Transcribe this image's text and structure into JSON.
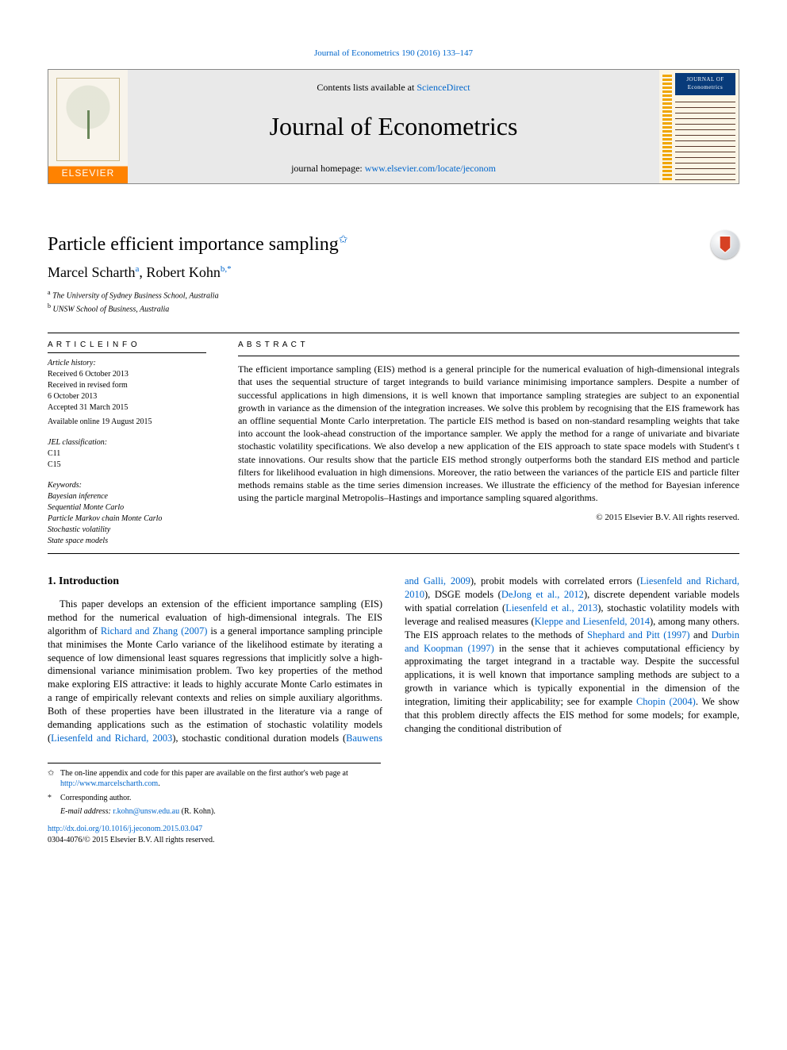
{
  "citation": "Journal of Econometrics 190 (2016) 133–147",
  "header": {
    "contents_prefix": "Contents lists available at ",
    "contents_link": "ScienceDirect",
    "journal_name": "Journal of Econometrics",
    "homepage_prefix": "journal homepage: ",
    "homepage_link": "www.elsevier.com/locate/jeconom",
    "elsevier_label": "ELSEVIER",
    "cover_badge_line1": "JOURNAL OF",
    "cover_badge_line2": "Econometrics"
  },
  "title": {
    "text": "Particle efficient importance sampling",
    "star": "✩"
  },
  "authors": [
    {
      "name": "Marcel Scharth",
      "aff": "a"
    },
    {
      "name": "Robert Kohn",
      "aff": "b,*"
    }
  ],
  "author_sep": ", ",
  "affiliations": [
    {
      "mark": "a",
      "text": "The University of Sydney Business School, Australia"
    },
    {
      "mark": "b",
      "text": "UNSW School of Business, Australia"
    }
  ],
  "meta": {
    "info_heading": "A R T I C L E   I N F O",
    "history": [
      "Article history:",
      "Received 6 October 2013",
      "Received in revised form",
      "6 October 2013",
      "Accepted 31 March 2015"
    ],
    "available": "Available online 19 August 2015",
    "jel_heading": "JEL classification:",
    "jel_codes": [
      "C11",
      "C15"
    ],
    "kw_heading": "Keywords:",
    "keywords": [
      "Bayesian inference",
      "Sequential Monte Carlo",
      "Particle Markov chain Monte Carlo",
      "Stochastic volatility",
      "State space models"
    ]
  },
  "abstract": {
    "heading": "A B S T R A C T",
    "text": "The efficient importance sampling (EIS) method is a general principle for the numerical evaluation of high-dimensional integrals that uses the sequential structure of target integrands to build variance minimising importance samplers. Despite a number of successful applications in high dimensions, it is well known that importance sampling strategies are subject to an exponential growth in variance as the dimension of the integration increases. We solve this problem by recognising that the EIS framework has an offline sequential Monte Carlo interpretation. The particle EIS method is based on non-standard resampling weights that take into account the look-ahead construction of the importance sampler. We apply the method for a range of univariate and bivariate stochastic volatility specifications. We also develop a new application of the EIS approach to state space models with Student's t state innovations. Our results show that the particle EIS method strongly outperforms both the standard EIS method and particle filters for likelihood evaluation in high dimensions. Moreover, the ratio between the variances of the particle EIS and particle filter methods remains stable as the time series dimension increases. We illustrate the efficiency of the method for Bayesian inference using the particle marginal Metropolis–Hastings and importance sampling squared algorithms."
  },
  "copyright": "© 2015 Elsevier B.V. All rights reserved.",
  "section_heading": "1. Introduction",
  "body_html": "This paper develops an extension of the efficient importance sampling (EIS) method for the numerical evaluation of high-dimensional integrals. The EIS algorithm of <span class='cite'>Richard and Zhang (2007)</span> is a general importance sampling principle that minimises the Monte Carlo variance of the likelihood estimate by iterating a sequence of low dimensional least squares regressions that implicitly solve a high-dimensional variance minimisation problem. Two key properties of the method make exploring EIS attractive: it leads to highly accurate Monte Carlo estimates in a range of empirically relevant contexts and relies on simple auxiliary algorithms. Both of these properties have been illustrated in the literature via a range of demanding applications such as the estimation of stochastic volatility models (<span class='cite'>Liesenfeld and Richard, 2003</span>), stochastic conditional duration models (<span class='cite'>Bauwens and Galli, 2009</span>), probit models with correlated errors (<span class='cite'>Liesenfeld and Richard, 2010</span>), DSGE models (<span class='cite'>DeJong et al., 2012</span>), discrete dependent variable models with spatial correlation (<span class='cite'>Liesenfeld et al., 2013</span>), stochastic volatility models with leverage and realised measures (<span class='cite'>Kleppe and Liesenfeld, 2014</span>), among many others. The EIS approach relates to the methods of <span class='cite'>Shephard and Pitt (1997)</span> and <span class='cite'>Durbin and Koopman (1997)</span> in the sense that it achieves computational efficiency by approximating the target integrand in a tractable way. Despite the successful applications, it is well known that importance sampling methods are subject to a growth in variance which is typically exponential in the dimension of the integration, limiting their applicability; see for example <span class='cite'>Chopin (2004)</span>. We show that this problem directly affects the EIS method for some models; for example, changing the conditional distribution of ",
  "footnotes": {
    "fn1_sym": "✩",
    "fn1_text": "The on-line appendix and code for this paper are available on the first author's web page at ",
    "fn1_link": "http://www.marcelscharth.com",
    "fn2_sym": "*",
    "fn2_text": "Corresponding author.",
    "fn3_label": "E-mail address:",
    "fn3_email": "r.kohn@unsw.edu.au",
    "fn3_tail": " (R. Kohn)."
  },
  "doi": {
    "link": "http://dx.doi.org/10.1016/j.jeconom.2015.03.047",
    "copy": "0304-4076/© 2015 Elsevier B.V. All rights reserved."
  },
  "colors": {
    "link": "#0066cc",
    "text": "#000000",
    "header_bg": "#e9e9e9"
  }
}
